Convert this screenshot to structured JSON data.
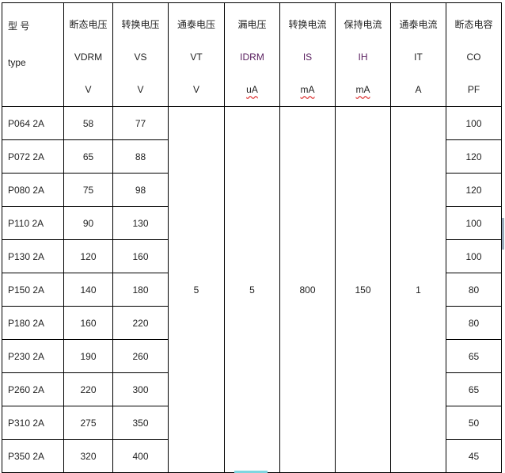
{
  "headers": [
    {
      "cn": "型  号",
      "sym": "type",
      "unit": ""
    },
    {
      "cn": "断态电压",
      "sym": "VDRM",
      "unit": "V"
    },
    {
      "cn": "转换电压",
      "sym": "VS",
      "unit": "V"
    },
    {
      "cn": "通泰电压",
      "sym": "VT",
      "unit": "V"
    },
    {
      "cn": "漏电压",
      "sym": "IDRM",
      "unit": "uA"
    },
    {
      "cn": "转换电流",
      "sym": "IS",
      "unit": "mA"
    },
    {
      "cn": "保持电流",
      "sym": "IH",
      "unit": "mA"
    },
    {
      "cn": "通泰电流",
      "sym": "IT",
      "unit": "A"
    },
    {
      "cn": "断态电容",
      "sym": "CO",
      "unit": "PF"
    }
  ],
  "rows": [
    {
      "type": "P064   2A",
      "vdrm": "58",
      "vs": "77",
      "co": "100"
    },
    {
      "type": "P072   2A",
      "vdrm": "65",
      "vs": "88",
      "co": "120"
    },
    {
      "type": "P080   2A",
      "vdrm": "75",
      "vs": "98",
      "co": "120"
    },
    {
      "type": "P110   2A",
      "vdrm": "90",
      "vs": "130",
      "co": "100"
    },
    {
      "type": "P130   2A",
      "vdrm": "120",
      "vs": "160",
      "co": "100"
    },
    {
      "type": "P150   2A",
      "vdrm": "140",
      "vs": "180",
      "co": "80"
    },
    {
      "type": "P180   2A",
      "vdrm": "160",
      "vs": "220",
      "co": "80"
    },
    {
      "type": "P230   2A",
      "vdrm": "190",
      "vs": "260",
      "co": "65"
    },
    {
      "type": "P260   2A",
      "vdrm": "220",
      "vs": "300",
      "co": "65"
    },
    {
      "type": "P310   2A",
      "vdrm": "275",
      "vs": "350",
      "co": "50"
    },
    {
      "type": "P350   2A",
      "vdrm": "320",
      "vs": "400",
      "co": "45"
    }
  ],
  "shared": {
    "vt": "5",
    "idrm": "5",
    "is": "800",
    "ih": "150",
    "it": "1"
  }
}
